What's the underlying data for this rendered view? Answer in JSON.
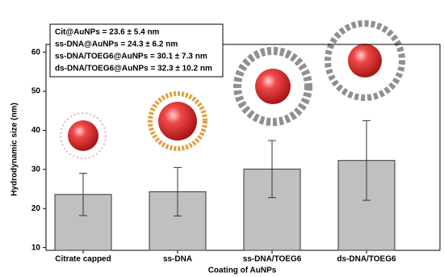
{
  "chart_data": {
    "type": "bar",
    "categories": [
      "Citrate capped",
      "ss-DNA",
      "ss-DNA/TOEG6",
      "ds-DNA/TOEG6"
    ],
    "values": [
      23.6,
      24.3,
      30.1,
      32.3
    ],
    "errors": [
      5.4,
      6.2,
      7.3,
      10.2
    ],
    "color": "#c0c0c0",
    "x_label": "Coating of AuNPs",
    "y_label": "Hydrodynamic size (nm)",
    "ylim": [
      9.3,
      62
    ],
    "yticks": [
      10,
      20,
      30,
      40,
      50,
      60
    ],
    "annotations": [
      "Cit@AuNPs = 23.6 ± 5.4 nm",
      "ss-DNA@AuNPs = 24.3 ± 6.2 nm",
      "ss-DNA/TOEG6@AuNPs = 30.1 ± 7.3 nm",
      "ds-DNA/TOEG6@AuNPs = 32.3 ± 10.2 nm"
    ]
  }
}
